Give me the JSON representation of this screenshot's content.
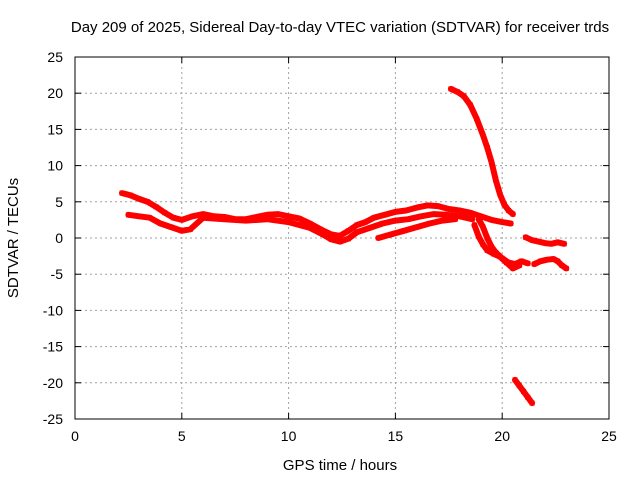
{
  "chart_data": {
    "type": "scatter",
    "title": "Day 209 of 2025, Sidereal Day-to-day VTEC variation (SDTVAR) for receiver trds",
    "xlabel": "GPS time / hours",
    "ylabel": "SDTVAR / TECUs",
    "xlim": [
      0,
      25
    ],
    "ylim": [
      -25,
      25
    ],
    "xticks": [
      0,
      5,
      10,
      15,
      20,
      25
    ],
    "yticks": [
      -25,
      -20,
      -15,
      -10,
      -5,
      0,
      5,
      10,
      15,
      20,
      25
    ],
    "grid": true,
    "marker_color": "#ff0000",
    "series": [
      {
        "name": "track-main-upper",
        "points": [
          [
            2.2,
            6.2
          ],
          [
            2.6,
            5.9
          ],
          [
            3.0,
            5.4
          ],
          [
            3.4,
            5.0
          ],
          [
            3.8,
            4.3
          ],
          [
            4.2,
            3.5
          ],
          [
            4.6,
            2.8
          ],
          [
            5.0,
            2.5
          ],
          [
            5.5,
            3.0
          ],
          [
            6.0,
            3.3
          ],
          [
            6.5,
            3.0
          ],
          [
            7.0,
            2.9
          ],
          [
            7.5,
            2.6
          ],
          [
            8.0,
            2.6
          ],
          [
            8.5,
            2.9
          ],
          [
            9.0,
            3.2
          ],
          [
            9.5,
            3.3
          ],
          [
            10.0,
            3.0
          ],
          [
            10.5,
            2.7
          ],
          [
            11.0,
            2.0
          ],
          [
            11.5,
            1.2
          ],
          [
            12.0,
            0.5
          ],
          [
            12.4,
            0.3
          ],
          [
            12.8,
            1.0
          ],
          [
            13.2,
            1.8
          ],
          [
            13.6,
            2.2
          ],
          [
            14.0,
            2.8
          ],
          [
            14.5,
            3.2
          ],
          [
            15.0,
            3.6
          ],
          [
            15.5,
            3.8
          ],
          [
            16.0,
            4.2
          ],
          [
            16.5,
            4.5
          ],
          [
            17.0,
            4.4
          ],
          [
            17.5,
            4.0
          ],
          [
            18.0,
            3.8
          ],
          [
            18.5,
            3.5
          ],
          [
            19.0,
            3.0
          ],
          [
            19.5,
            2.5
          ],
          [
            20.0,
            2.2
          ],
          [
            20.4,
            2.0
          ]
        ]
      },
      {
        "name": "track-main-lower",
        "points": [
          [
            2.5,
            3.2
          ],
          [
            3.0,
            3.0
          ],
          [
            3.5,
            2.8
          ],
          [
            4.0,
            2.0
          ],
          [
            4.5,
            1.5
          ],
          [
            5.0,
            1.0
          ],
          [
            5.4,
            1.2
          ],
          [
            6.0,
            2.8
          ],
          [
            7.0,
            2.6
          ],
          [
            8.0,
            2.4
          ],
          [
            9.0,
            2.6
          ],
          [
            10.0,
            2.2
          ],
          [
            11.0,
            1.4
          ],
          [
            11.6,
            0.5
          ],
          [
            12.0,
            -0.2
          ],
          [
            12.4,
            -0.5
          ],
          [
            12.8,
            -0.1
          ],
          [
            13.2,
            0.8
          ],
          [
            13.8,
            1.4
          ],
          [
            14.4,
            2.0
          ],
          [
            15.0,
            2.4
          ],
          [
            15.6,
            2.6
          ],
          [
            16.2,
            3.0
          ],
          [
            16.8,
            3.3
          ],
          [
            17.4,
            3.2
          ],
          [
            18.0,
            3.0
          ],
          [
            18.6,
            2.6
          ]
        ]
      },
      {
        "name": "track-dip-2",
        "points": [
          [
            14.2,
            0.0
          ],
          [
            14.8,
            0.5
          ],
          [
            15.4,
            1.0
          ],
          [
            16.0,
            1.5
          ],
          [
            16.6,
            2.0
          ],
          [
            17.2,
            2.4
          ],
          [
            17.8,
            2.6
          ]
        ]
      },
      {
        "name": "track-descent-high",
        "points": [
          [
            17.6,
            20.6
          ],
          [
            17.9,
            20.2
          ],
          [
            18.2,
            19.6
          ],
          [
            18.5,
            18.4
          ],
          [
            18.8,
            16.5
          ],
          [
            19.1,
            14.2
          ],
          [
            19.3,
            12.5
          ],
          [
            19.5,
            10.5
          ],
          [
            19.7,
            8.0
          ],
          [
            19.9,
            6.0
          ],
          [
            20.1,
            4.6
          ],
          [
            20.3,
            3.8
          ],
          [
            20.5,
            3.3
          ]
        ]
      },
      {
        "name": "track-descent-mid-1",
        "points": [
          [
            18.9,
            2.6
          ],
          [
            19.1,
            1.5
          ],
          [
            19.3,
            0.0
          ],
          [
            19.5,
            -1.2
          ],
          [
            19.7,
            -2.0
          ],
          [
            20.0,
            -2.8
          ],
          [
            20.3,
            -3.4
          ],
          [
            20.6,
            -3.6
          ],
          [
            20.9,
            -3.2
          ],
          [
            21.2,
            -3.5
          ]
        ]
      },
      {
        "name": "track-descent-mid-2",
        "points": [
          [
            18.7,
            1.8
          ],
          [
            18.9,
            0.2
          ],
          [
            19.1,
            -0.9
          ],
          [
            19.3,
            -1.7
          ],
          [
            19.6,
            -2.2
          ],
          [
            19.9,
            -2.6
          ],
          [
            20.2,
            -3.4
          ],
          [
            20.5,
            -4.2
          ],
          [
            20.8,
            -3.8
          ]
        ]
      },
      {
        "name": "track-late-right",
        "points": [
          [
            21.1,
            0.1
          ],
          [
            21.4,
            -0.3
          ],
          [
            21.7,
            -0.5
          ],
          [
            22.0,
            -0.7
          ],
          [
            22.3,
            -0.8
          ],
          [
            22.6,
            -0.6
          ],
          [
            22.9,
            -0.8
          ]
        ]
      },
      {
        "name": "track-late-right-2",
        "points": [
          [
            21.5,
            -3.6
          ],
          [
            21.8,
            -3.2
          ],
          [
            22.1,
            -3.0
          ],
          [
            22.4,
            -2.9
          ],
          [
            22.6,
            -3.2
          ],
          [
            22.8,
            -3.8
          ],
          [
            23.0,
            -4.2
          ]
        ]
      },
      {
        "name": "track-bottom",
        "points": [
          [
            20.6,
            -19.6
          ],
          [
            20.8,
            -20.4
          ],
          [
            21.0,
            -21.2
          ],
          [
            21.2,
            -22.0
          ],
          [
            21.4,
            -22.8
          ]
        ]
      }
    ]
  }
}
